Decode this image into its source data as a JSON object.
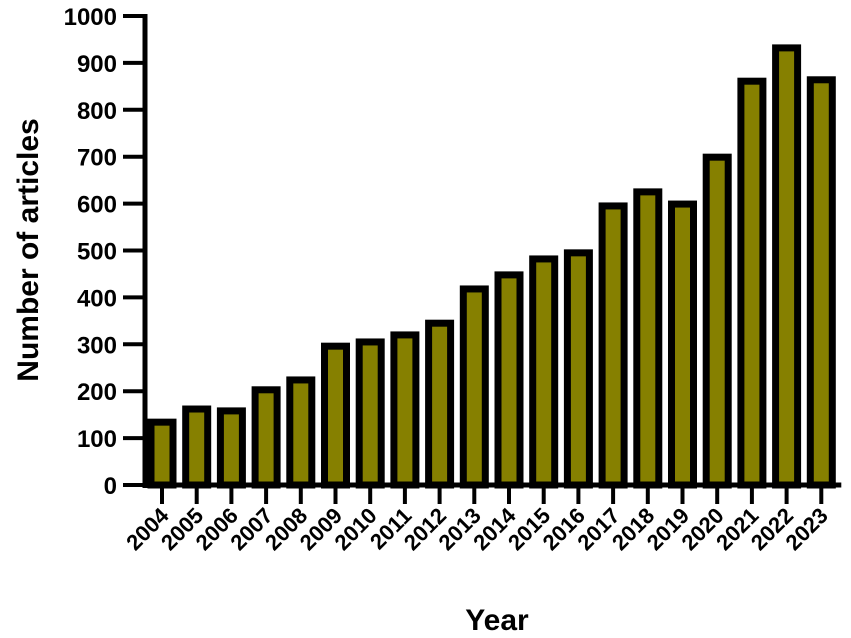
{
  "chart_data": {
    "type": "bar",
    "title": "",
    "xlabel": "Year",
    "ylabel": "Number of articles",
    "categories": [
      "2004",
      "2005",
      "2006",
      "2007",
      "2008",
      "2009",
      "2010",
      "2011",
      "2012",
      "2013",
      "2014",
      "2015",
      "2016",
      "2017",
      "2018",
      "2019",
      "2020",
      "2021",
      "2022",
      "2023"
    ],
    "values": [
      134,
      162,
      158,
      203,
      224,
      296,
      305,
      320,
      345,
      418,
      448,
      482,
      495,
      595,
      625,
      599,
      699,
      861,
      932,
      864
    ],
    "ylim": [
      0,
      1000
    ],
    "yticks": [
      0,
      100,
      200,
      300,
      400,
      500,
      600,
      700,
      800,
      900,
      1000
    ],
    "grid": false,
    "legend": null,
    "colors": {
      "bar_fill": "#868000",
      "bar_outline": "#000000",
      "axis": "#000000"
    }
  }
}
